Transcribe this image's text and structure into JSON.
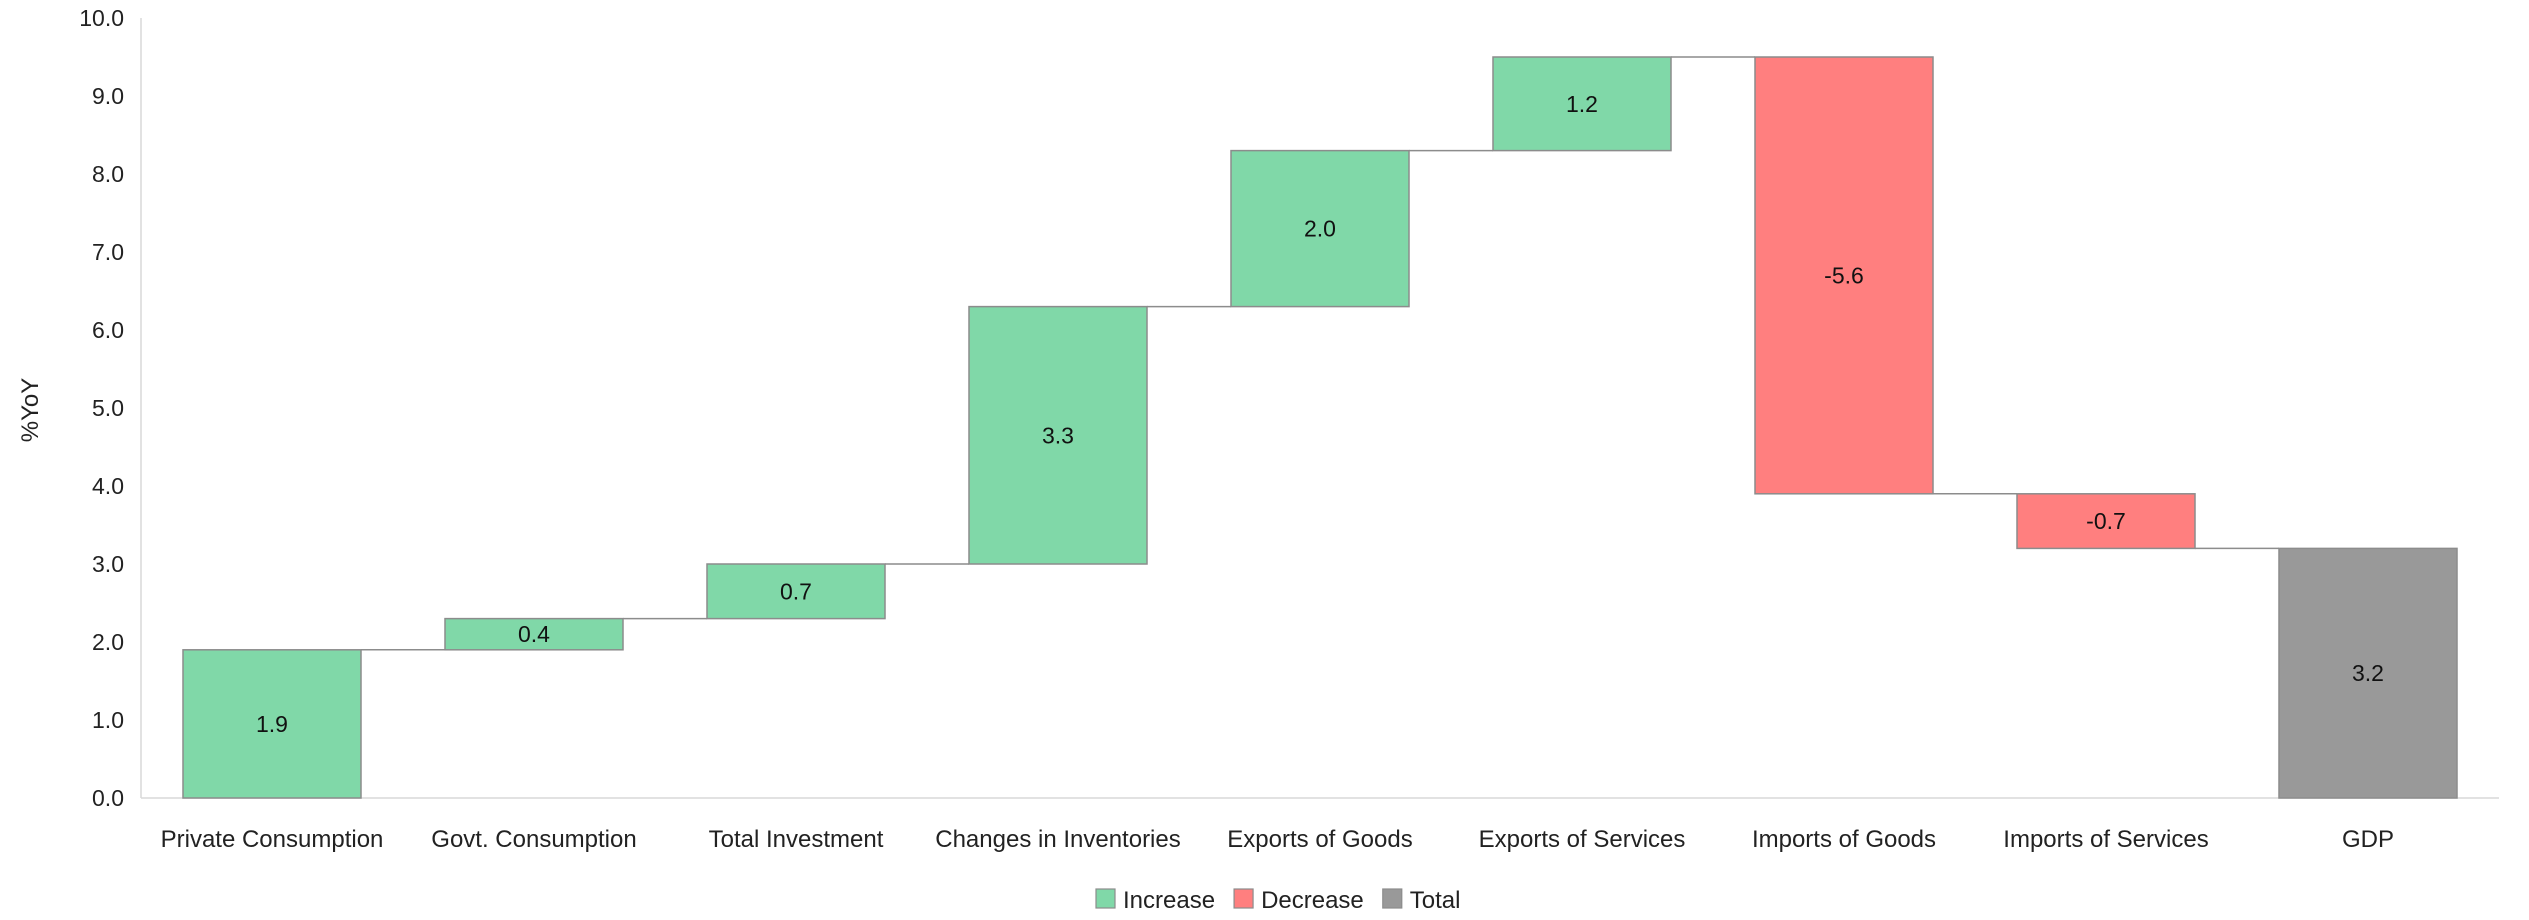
{
  "chart_data": {
    "type": "waterfall",
    "title": "",
    "xlabel": "",
    "ylabel": "%YoY",
    "ylim": [
      0,
      10
    ],
    "yticks": [
      "0.0",
      "1.0",
      "2.0",
      "3.0",
      "4.0",
      "5.0",
      "6.0",
      "7.0",
      "8.0",
      "9.0",
      "10.0"
    ],
    "grid": false,
    "legend_position": "bottom-center",
    "categories": [
      "Private Consumption",
      "Govt. Consumption",
      "Total Investment",
      "Changes in Inventories",
      "Exports of Goods",
      "Exports of Services",
      "Imports of Goods",
      "Imports of Services",
      "GDP"
    ],
    "values": [
      1.9,
      0.4,
      0.7,
      3.3,
      2.0,
      1.2,
      -5.6,
      -0.7,
      3.2
    ],
    "value_labels": [
      "1.9",
      "0.4",
      "0.7",
      "3.3",
      "2.0",
      "1.2",
      "-5.6",
      "-0.7",
      "3.2"
    ],
    "bar_types": [
      "increase",
      "increase",
      "increase",
      "increase",
      "increase",
      "increase",
      "decrease",
      "decrease",
      "total"
    ],
    "legend": [
      {
        "key": "increase",
        "label": "Increase",
        "color": "#80d8a8"
      },
      {
        "key": "decrease",
        "label": "Decrease",
        "color": "#ff7f7f"
      },
      {
        "key": "total",
        "label": "Total",
        "color": "#999999"
      }
    ]
  }
}
